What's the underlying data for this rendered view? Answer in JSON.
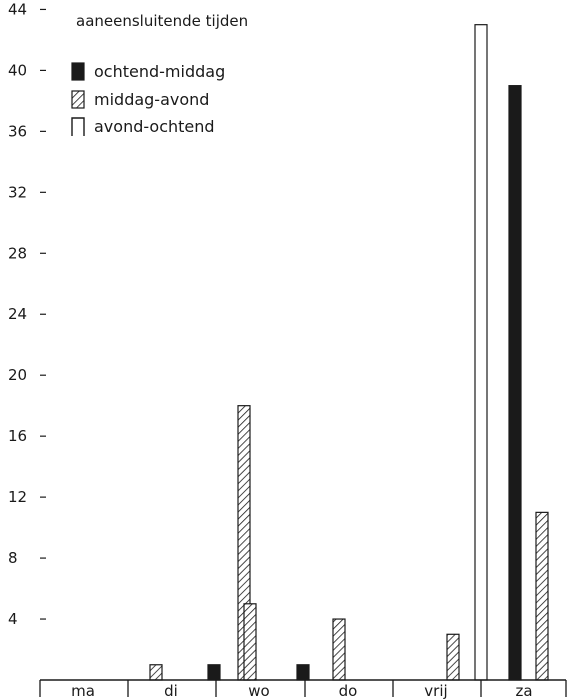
{
  "chart_data": {
    "type": "bar",
    "title": "aaneensluitende tijden",
    "categories": [
      "ma",
      "di",
      "wo",
      "do",
      "vrij",
      "za"
    ],
    "series": [
      {
        "name": "ochtend-middag",
        "pattern": "solid",
        "values": [
          0,
          0,
          1,
          1,
          0,
          39
        ]
      },
      {
        "name": "middag-avond",
        "pattern": "hatched",
        "values": [
          1,
          18,
          5,
          4,
          3,
          11
        ]
      },
      {
        "name": "avond-ochtend",
        "pattern": "outline",
        "values": [
          0,
          0,
          0,
          0,
          43,
          0
        ]
      }
    ],
    "yticks": [
      4,
      8,
      12,
      16,
      20,
      24,
      28,
      32,
      36,
      40,
      44
    ],
    "ylim": [
      0,
      44
    ],
    "xlabel": "",
    "ylabel": "",
    "grid": false,
    "legend_position": "top-left",
    "colors": {
      "ink": "#1a1a1a",
      "background": "#ffffff"
    }
  }
}
